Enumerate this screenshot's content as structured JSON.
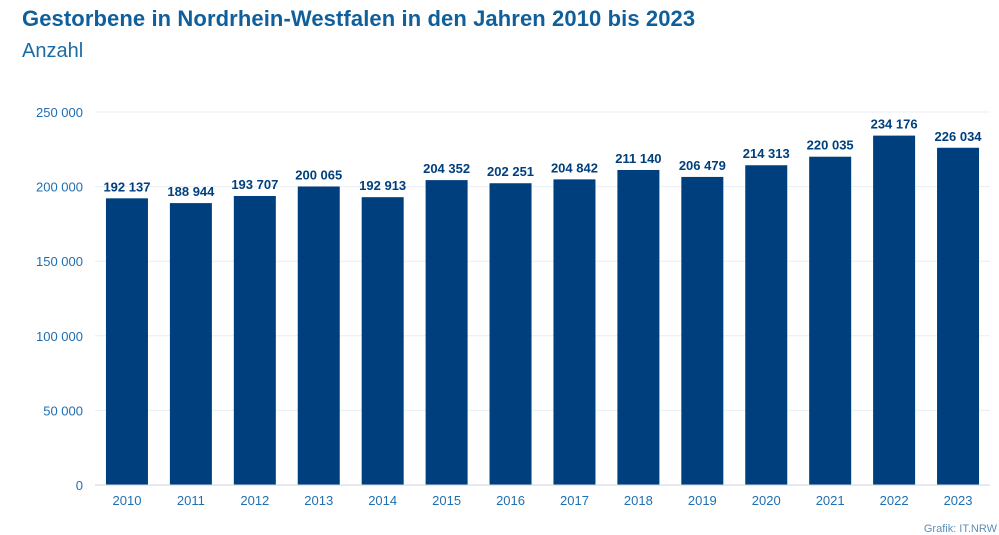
{
  "title": "Gestorbene in Nordrhein-Westfalen in den Jahren 2010 bis 2023",
  "subtitle": "Anzahl",
  "credit": "Grafik: IT.NRW",
  "colors": {
    "bar": "#003f7d",
    "title": "#0f5f9c",
    "axis_text": "#1f6fb2",
    "label_text": "#003f7d",
    "grid": "#e8eef4"
  },
  "chart_data": {
    "type": "bar",
    "categories": [
      "2010",
      "2011",
      "2012",
      "2013",
      "2014",
      "2015",
      "2016",
      "2017",
      "2018",
      "2019",
      "2020",
      "2021",
      "2022",
      "2023"
    ],
    "values": [
      192137,
      188944,
      193707,
      200065,
      192913,
      204352,
      202251,
      204842,
      211140,
      206479,
      214313,
      220035,
      234176,
      226034
    ],
    "value_labels": [
      "192 137",
      "188 944",
      "193 707",
      "200 065",
      "192 913",
      "204 352",
      "202 251",
      "204 842",
      "211 140",
      "206 479",
      "214 313",
      "220 035",
      "234 176",
      "226 034"
    ],
    "title": "Gestorbene in Nordrhein-Westfalen in den Jahren 2010 bis 2023",
    "xlabel": "",
    "ylabel": "",
    "ylim": [
      0,
      250000
    ],
    "yticks": [
      0,
      50000,
      100000,
      150000,
      200000,
      250000
    ],
    "ytick_labels": [
      "0",
      "50 000",
      "100 000",
      "150 000",
      "200 000",
      "250 000"
    ],
    "grid": true,
    "legend": "none"
  }
}
